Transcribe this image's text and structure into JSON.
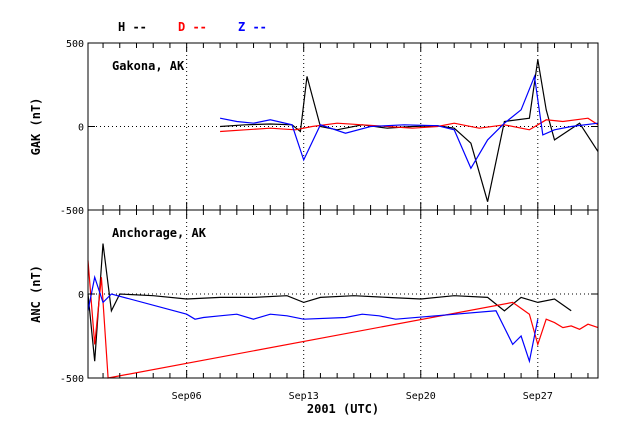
{
  "legend": [
    {
      "label": "H --",
      "color": "#000000"
    },
    {
      "label": "D --",
      "color": "#ff0000"
    },
    {
      "label": "Z --",
      "color": "#0000ff"
    }
  ],
  "colors": {
    "H": "#000000",
    "D": "#ff0000",
    "Z": "#0000ff"
  },
  "chart_data": {
    "type": "line",
    "xlabel": "2001 (UTC)",
    "x_ticks": [
      "Sep06",
      "Sep13",
      "Sep20",
      "Sep27"
    ],
    "x_tick_days": [
      6,
      13,
      20,
      27
    ],
    "xlim_days": [
      0.1,
      30.6
    ],
    "grid": "dotted, vertical at weekly ticks and horizontal at 0",
    "panels": [
      {
        "station": "Gakona, AK",
        "ylabel": "GAK (nT)",
        "ylim": [
          -500,
          500
        ],
        "yticks": [
          "500",
          "0",
          "-500"
        ],
        "series": [
          {
            "name": "H",
            "x": [
              8.0,
              9.5,
              11.0,
              12.3,
              12.8,
              13.2,
              14.0,
              15.0,
              16.5,
              18.0,
              19.5,
              21.0,
              22.0,
              23.0,
              24.0,
              25.0,
              26.5,
              27.0,
              27.5,
              28.0,
              29.5,
              30.6
            ],
            "y": [
              0,
              10,
              15,
              10,
              -30,
              300,
              0,
              -20,
              10,
              -10,
              0,
              5,
              -10,
              -100,
              -450,
              30,
              50,
              400,
              100,
              -80,
              20,
              -150
            ]
          },
          {
            "name": "D",
            "x": [
              8.0,
              9.5,
              11.0,
              12.5,
              13.5,
              15.0,
              16.5,
              18.0,
              19.5,
              21.0,
              22.0,
              23.5,
              25.0,
              26.5,
              27.5,
              28.5,
              30.0,
              30.6
            ],
            "y": [
              -30,
              -20,
              -10,
              -20,
              0,
              20,
              10,
              0,
              -10,
              0,
              20,
              -10,
              10,
              -20,
              40,
              30,
              50,
              10
            ]
          },
          {
            "name": "Z",
            "x": [
              8.0,
              9.0,
              10.0,
              11.0,
              12.3,
              13.0,
              14.0,
              15.5,
              17.0,
              19.0,
              21.0,
              22.0,
              23.0,
              24.0,
              25.0,
              26.0,
              26.8,
              27.3,
              28.0,
              29.0,
              30.6
            ],
            "y": [
              50,
              30,
              20,
              40,
              10,
              -200,
              10,
              -40,
              0,
              10,
              5,
              -20,
              -250,
              -80,
              20,
              100,
              300,
              -50,
              -20,
              0,
              20
            ]
          }
        ]
      },
      {
        "station": "Anchorage, AK",
        "ylabel": "ANC (nT)",
        "ylim": [
          -500,
          500
        ],
        "yticks": [
          "0",
          "-500"
        ],
        "series": [
          {
            "name": "H",
            "x": [
              0.1,
              0.5,
              1.0,
              1.5,
              2.0,
              4.0,
              6.0,
              8.0,
              10.0,
              12.0,
              13.0,
              14.0,
              16.0,
              18.0,
              20.0,
              22.0,
              24.0,
              25.0,
              26.0,
              27.0,
              28.0,
              29.0
            ],
            "y": [
              0,
              -400,
              300,
              -100,
              0,
              -10,
              -30,
              -20,
              -20,
              -10,
              -50,
              -20,
              -10,
              -20,
              -30,
              -10,
              -20,
              -100,
              -20,
              -50,
              -30,
              -100
            ]
          },
          {
            "name": "D",
            "x": [
              0.1,
              0.5,
              0.9,
              1.3,
              25.5,
              26.5,
              27.0,
              27.5,
              28.0,
              28.5,
              29.0,
              29.5,
              30.0,
              30.6
            ],
            "y": [
              200,
              -300,
              100,
              -500,
              -50,
              -120,
              -300,
              -150,
              -170,
              -200,
              -190,
              -210,
              -180,
              -200
            ]
          },
          {
            "name": "Z",
            "x": [
              0.1,
              0.5,
              1.0,
              1.5,
              6.0,
              6.5,
              7.0,
              8.0,
              9.0,
              10.0,
              11.0,
              12.0,
              13.0,
              15.5,
              16.5,
              17.5,
              18.5,
              24.5,
              25.0,
              25.5,
              26.0,
              26.5,
              27.0
            ],
            "y": [
              -100,
              100,
              -50,
              0,
              -120,
              -150,
              -140,
              -130,
              -120,
              -150,
              -120,
              -130,
              -150,
              -140,
              -120,
              -130,
              -150,
              -100,
              -200,
              -300,
              -250,
              -400,
              -150
            ]
          }
        ]
      }
    ]
  }
}
